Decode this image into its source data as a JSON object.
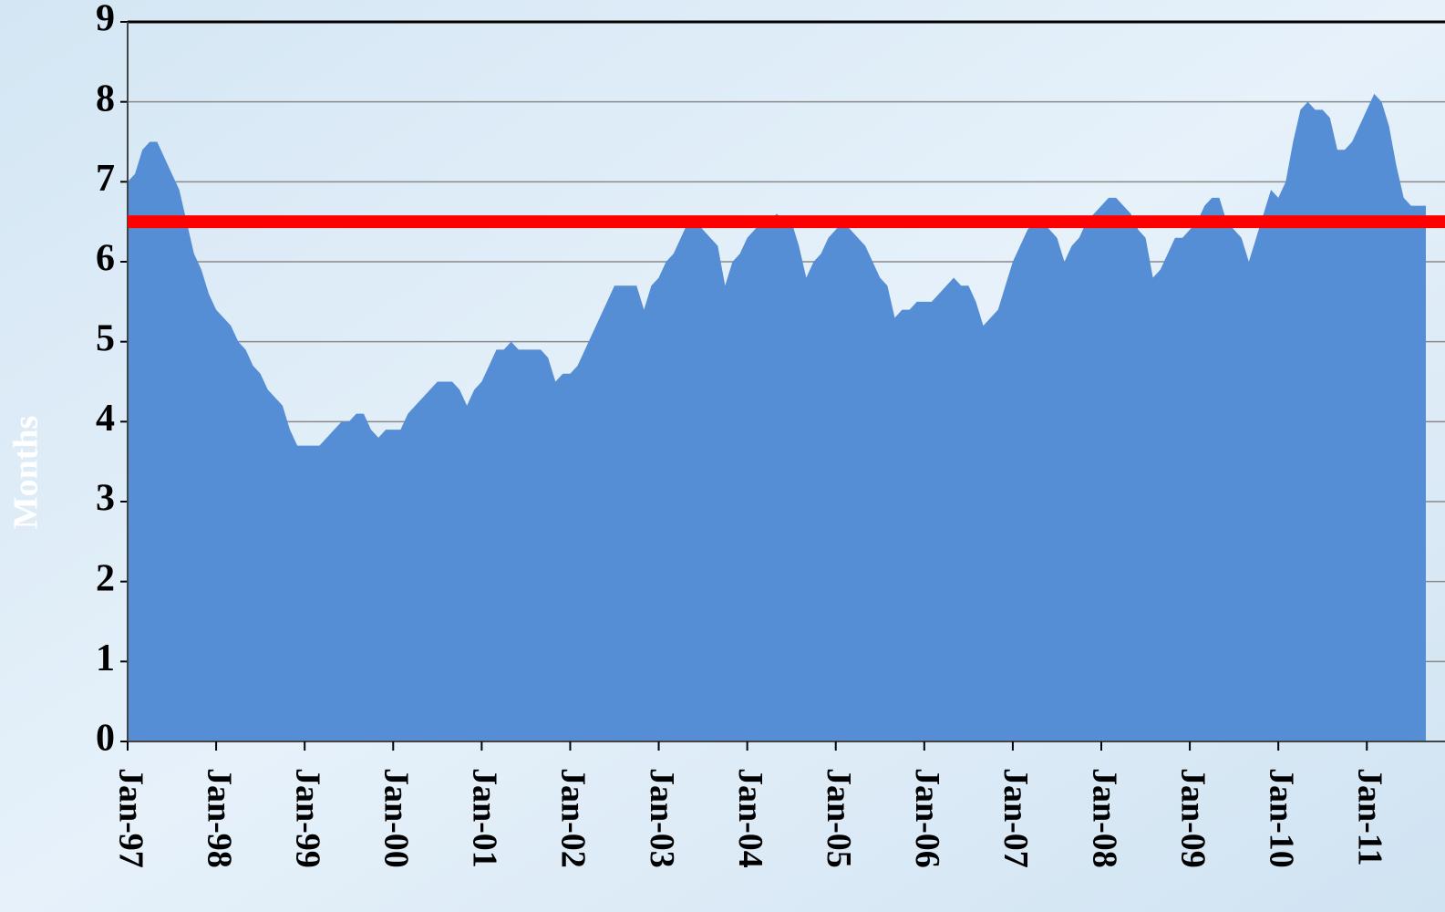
{
  "chart_data": {
    "type": "area",
    "y_label": "Months",
    "categories": [
      "Jan-97",
      null,
      null,
      null,
      null,
      null,
      null,
      null,
      null,
      null,
      null,
      null,
      "Jan-98",
      null,
      null,
      null,
      null,
      null,
      null,
      null,
      null,
      null,
      null,
      null,
      "Jan-99",
      null,
      null,
      null,
      null,
      null,
      null,
      null,
      null,
      null,
      null,
      null,
      "Jan-00",
      null,
      null,
      null,
      null,
      null,
      null,
      null,
      null,
      null,
      null,
      null,
      "Jan-01",
      null,
      null,
      null,
      null,
      null,
      null,
      null,
      null,
      null,
      null,
      null,
      "Jan-02",
      null,
      null,
      null,
      null,
      null,
      null,
      null,
      null,
      null,
      null,
      null,
      "Jan-03",
      null,
      null,
      null,
      null,
      null,
      null,
      null,
      null,
      null,
      null,
      null,
      "Jan-04",
      null,
      null,
      null,
      null,
      null,
      null,
      null,
      null,
      null,
      null,
      null,
      "Jan-05",
      null,
      null,
      null,
      null,
      null,
      null,
      null,
      null,
      null,
      null,
      null,
      "Jan-06",
      null,
      null,
      null,
      null,
      null,
      null,
      null,
      null,
      null,
      null,
      null,
      "Jan-07",
      null,
      null,
      null,
      null,
      null,
      null,
      null,
      null,
      null,
      null,
      null,
      "Jan-08",
      null,
      null,
      null,
      null,
      null,
      null,
      null,
      null,
      null,
      null,
      null,
      "Jan-09",
      null,
      null,
      null,
      null,
      null,
      null,
      null,
      null,
      null,
      null,
      null,
      "Jan-10",
      null,
      null,
      null,
      null,
      null,
      null,
      null,
      null,
      null,
      null,
      null,
      "Jan-11",
      null,
      null,
      null,
      null,
      null,
      null,
      null,
      null
    ],
    "values": [
      7.0,
      7.1,
      7.4,
      7.5,
      7.5,
      7.3,
      7.1,
      6.9,
      6.5,
      6.1,
      5.9,
      5.6,
      5.4,
      5.3,
      5.2,
      5.0,
      4.9,
      4.7,
      4.6,
      4.4,
      4.3,
      4.2,
      3.9,
      3.7,
      3.7,
      3.7,
      3.7,
      3.8,
      3.9,
      4.0,
      4.0,
      4.1,
      4.1,
      3.9,
      3.8,
      3.9,
      3.9,
      3.9,
      4.1,
      4.2,
      4.3,
      4.4,
      4.5,
      4.5,
      4.5,
      4.4,
      4.2,
      4.4,
      4.5,
      4.7,
      4.9,
      4.9,
      5.0,
      4.9,
      4.9,
      4.9,
      4.9,
      4.8,
      4.5,
      4.6,
      4.6,
      4.7,
      4.9,
      5.1,
      5.3,
      5.5,
      5.7,
      5.7,
      5.7,
      5.7,
      5.4,
      5.7,
      5.8,
      6.0,
      6.1,
      6.3,
      6.5,
      6.5,
      6.4,
      6.3,
      6.2,
      5.7,
      6.0,
      6.1,
      6.3,
      6.4,
      6.5,
      6.5,
      6.6,
      6.5,
      6.5,
      6.2,
      5.8,
      6.0,
      6.1,
      6.3,
      6.4,
      6.5,
      6.4,
      6.3,
      6.2,
      6.0,
      5.8,
      5.7,
      5.3,
      5.4,
      5.4,
      5.5,
      5.5,
      5.5,
      5.6,
      5.7,
      5.8,
      5.7,
      5.7,
      5.5,
      5.2,
      5.3,
      5.4,
      5.7,
      6.0,
      6.2,
      6.4,
      6.5,
      6.5,
      6.4,
      6.3,
      6.0,
      6.2,
      6.3,
      6.5,
      6.6,
      6.7,
      6.8,
      6.8,
      6.7,
      6.6,
      6.4,
      6.3,
      5.8,
      5.9,
      6.1,
      6.3,
      6.3,
      6.4,
      6.5,
      6.7,
      6.8,
      6.8,
      6.5,
      6.4,
      6.3,
      6.0,
      6.3,
      6.6,
      6.9,
      6.8,
      7.0,
      7.5,
      7.9,
      8.0,
      7.9,
      7.9,
      7.8,
      7.4,
      7.4,
      7.5,
      7.7,
      7.9,
      8.1,
      8.0,
      7.7,
      7.2,
      6.8,
      6.7,
      6.7,
      6.7
    ],
    "color": "#558ed5",
    "ylim": [
      0,
      9
    ],
    "yticks": [
      0,
      1,
      2,
      3,
      4,
      5,
      6,
      7,
      8,
      9
    ],
    "grid": true,
    "reference_line": {
      "value": 6.5,
      "color": "#ff0000"
    }
  }
}
